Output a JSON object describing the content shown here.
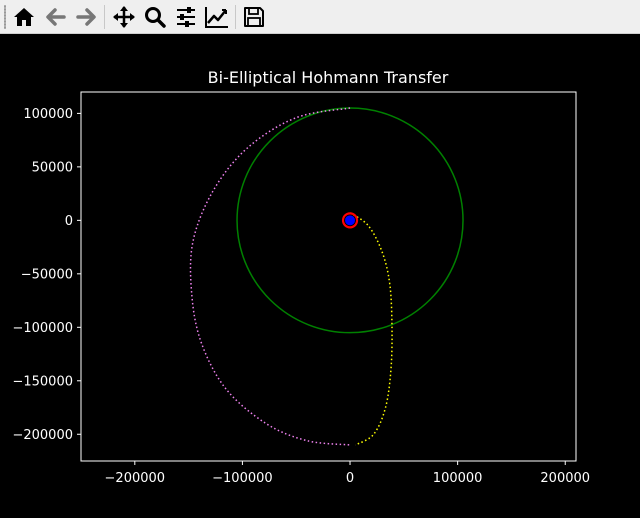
{
  "toolbar": {
    "buttons": [
      {
        "name": "home",
        "icon": "home-icon"
      },
      {
        "name": "back",
        "icon": "arrow-left-icon"
      },
      {
        "name": "forward",
        "icon": "arrow-right-icon"
      },
      {
        "name": "pan",
        "icon": "move-icon"
      },
      {
        "name": "zoom",
        "icon": "zoom-icon"
      },
      {
        "name": "configure-subplots",
        "icon": "sliders-icon"
      },
      {
        "name": "edit-axis",
        "icon": "line-chart-icon"
      },
      {
        "name": "save",
        "icon": "floppy-disk-icon"
      }
    ]
  },
  "chart_data": {
    "type": "line",
    "title": "Bi-Elliptical Hohmann Transfer",
    "xlabel": "",
    "ylabel": "",
    "xlim": [
      -250000,
      210000
    ],
    "ylim": [
      -225000,
      120000
    ],
    "xticks": [
      -200000,
      -100000,
      0,
      100000,
      200000
    ],
    "yticks": [
      -200000,
      -150000,
      -100000,
      -50000,
      0,
      50000,
      100000
    ],
    "xtick_labels": [
      "−200000",
      "−100000",
      "0",
      "100000",
      "200000"
    ],
    "ytick_labels": [
      "−200000",
      "−150000",
      "−100000",
      "−50000",
      "0",
      "50000",
      "100000"
    ],
    "grid": false,
    "background": "#000000",
    "series": [
      {
        "style": "solid",
        "color": "#008000",
        "shape": "circle",
        "center": [
          0,
          0
        ],
        "radius": 105000
      },
      {
        "style": "dotted",
        "color": "#ffff00",
        "shape": "ellipse-arc",
        "points": [
          [
            0,
            7000
          ],
          [
            17000,
            -5000
          ],
          [
            30000,
            -30000
          ],
          [
            37000,
            -60000
          ],
          [
            39000,
            -100000
          ],
          [
            38000,
            -140000
          ],
          [
            33000,
            -175000
          ],
          [
            22000,
            -200000
          ],
          [
            5000,
            -210000
          ]
        ]
      },
      {
        "style": "dotted",
        "color": "#ee82ee",
        "shape": "ellipse-arc",
        "points": [
          [
            0,
            105000
          ],
          [
            -50000,
            96000
          ],
          [
            -95000,
            68000
          ],
          [
            -127000,
            28000
          ],
          [
            -146000,
            -20000
          ],
          [
            -147000,
            -70000
          ],
          [
            -138000,
            -115000
          ],
          [
            -115000,
            -158000
          ],
          [
            -78000,
            -190000
          ],
          [
            -40000,
            -206000
          ],
          [
            0,
            -210000
          ]
        ]
      },
      {
        "style": "marker",
        "color": "#ff0000",
        "shape": "ring",
        "center": [
          0,
          0
        ]
      },
      {
        "style": "marker",
        "color": "#0000ff",
        "shape": "dot",
        "center": [
          0,
          0
        ]
      }
    ]
  }
}
